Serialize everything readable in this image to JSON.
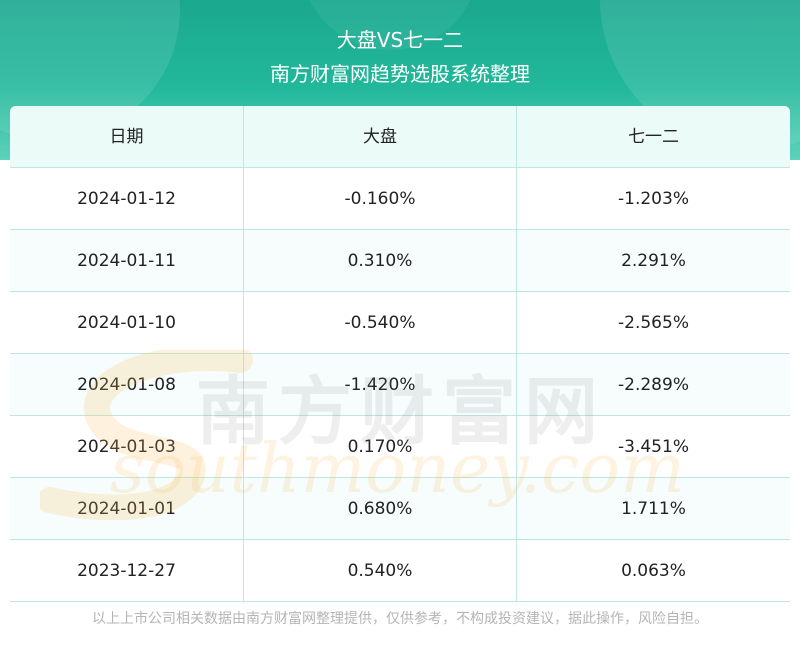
{
  "header": {
    "title": "大盘VS七一二",
    "subtitle": "南方财富网趋势选股系统整理"
  },
  "table": {
    "columns": [
      "日期",
      "大盘",
      "七一二"
    ],
    "rows": [
      {
        "date": "2024-01-12",
        "market": "-0.160%",
        "stock": "-1.203%"
      },
      {
        "date": "2024-01-11",
        "market": "0.310%",
        "stock": "2.291%"
      },
      {
        "date": "2024-01-10",
        "market": "-0.540%",
        "stock": "-2.565%"
      },
      {
        "date": "2024-01-08",
        "market": "-1.420%",
        "stock": "-2.289%"
      },
      {
        "date": "2024-01-03",
        "market": "0.170%",
        "stock": "-3.451%"
      },
      {
        "date": "2024-01-01",
        "market": "0.680%",
        "stock": "1.711%"
      },
      {
        "date": "2023-12-27",
        "market": "0.540%",
        "stock": "0.063%"
      }
    ]
  },
  "watermark": {
    "cn": "南方财富网",
    "en": "southmoney.com"
  },
  "footer": {
    "disclaimer": "以上上市公司相关数据由南方财富网整理提供，仅供参考，不构成投资建议，据此操作，风险自担。"
  },
  "colors": {
    "header_bg": "#22b89b",
    "header_row_bg": "#eafbf8",
    "grid_line": "#bfe6df"
  }
}
